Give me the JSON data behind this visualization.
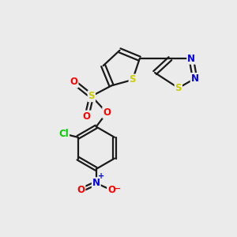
{
  "bg_color": "#ebebeb",
  "bond_color": "#1a1a1a",
  "bond_width": 1.6,
  "atom_colors": {
    "S": "#cccc00",
    "O": "#ff0000",
    "N": "#0000ee",
    "Cl": "#00cc00",
    "C": "#1a1a1a"
  },
  "figsize": [
    3.0,
    3.0
  ],
  "dpi": 100,
  "xlim": [
    0,
    10
  ],
  "ylim": [
    0,
    10
  ]
}
